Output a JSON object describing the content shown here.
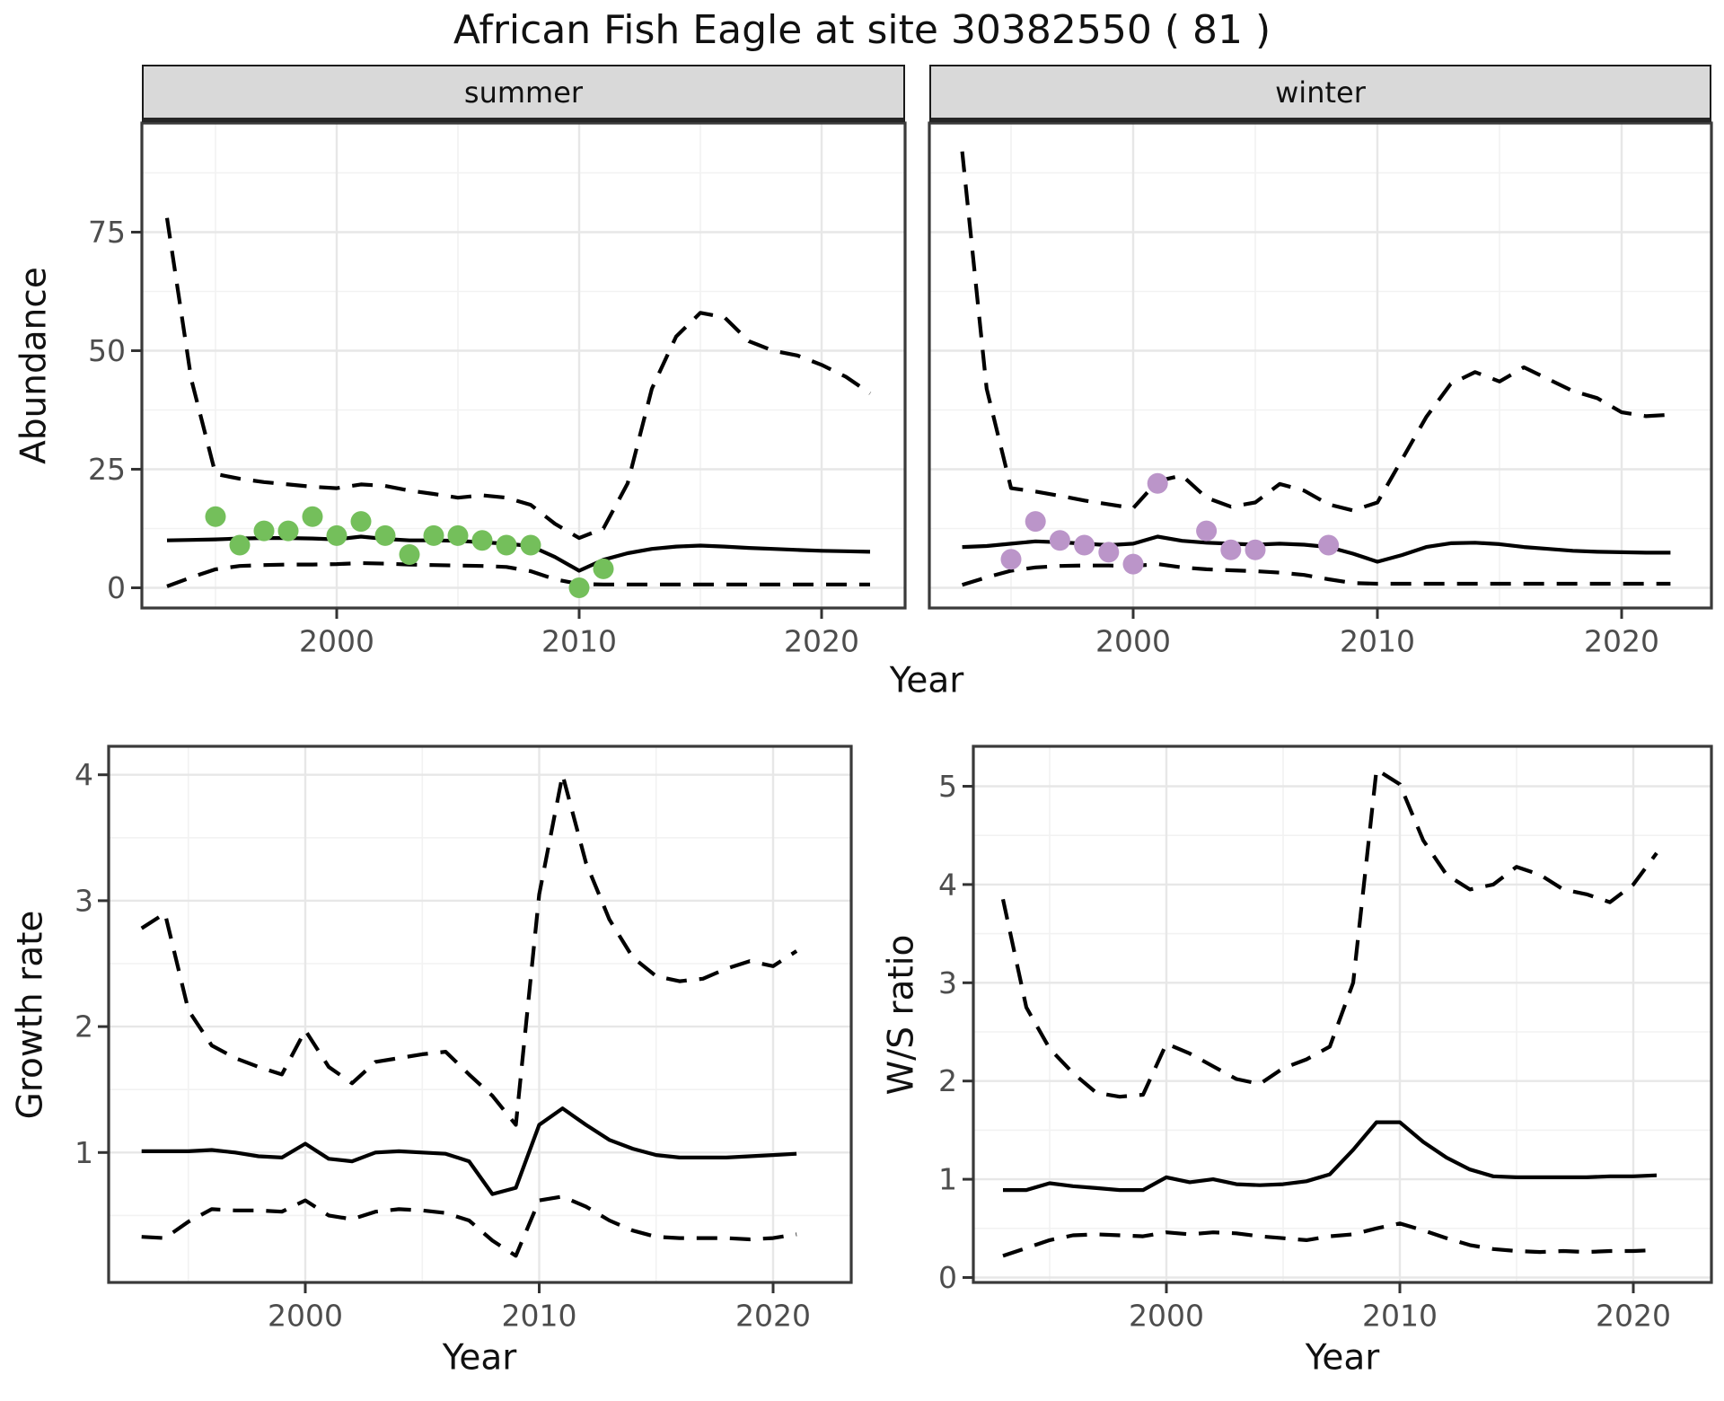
{
  "title": "African Fish Eagle at site 30382550 ( 81 )",
  "facets": [
    "summer",
    "winter"
  ],
  "colors": {
    "summer_points": "#74BF5B",
    "winter_points": "#BB95C9",
    "line": "#000000",
    "strip_bg": "#d9d9d9",
    "panel_border": "#3a3a3a",
    "grid_major": "#e7e7e7",
    "grid_minor": "#f2f2f2",
    "tick_text": "#4d4d4d"
  },
  "chart_data": [
    {
      "id": "abundance-summer",
      "type": "line",
      "facet": "summer",
      "title": "",
      "xlabel": "Year",
      "ylabel": "Abundance",
      "xlim": [
        1992.3,
        2023.3
      ],
      "ylim": [
        -4,
        98
      ],
      "x_ticks": [
        2000,
        2010,
        2020
      ],
      "x_minor": [
        1995,
        2005,
        2015
      ],
      "y_ticks": [
        0,
        25,
        50,
        75
      ],
      "y_minor": [
        12.5,
        37.5,
        62.5,
        87.5
      ],
      "grid": true,
      "legend": "none",
      "years": [
        1993,
        1994,
        1995,
        1996,
        1997,
        1998,
        1999,
        2000,
        2001,
        2002,
        2003,
        2004,
        2005,
        2006,
        2007,
        2008,
        2009,
        2010,
        2011,
        2012,
        2013,
        2014,
        2015,
        2016,
        2017,
        2018,
        2019,
        2020,
        2021,
        2022
      ],
      "series": [
        {
          "name": "fit",
          "style": "solid",
          "values": [
            10,
            10.1,
            10.2,
            10.4,
            10.5,
            10.5,
            10.4,
            10.2,
            10.8,
            10.3,
            10,
            10,
            9.9,
            9.6,
            9.3,
            8.8,
            6.5,
            3.6,
            5.9,
            7.3,
            8.2,
            8.7,
            8.9,
            8.7,
            8.4,
            8.2,
            8,
            7.8,
            7.7,
            7.6
          ]
        },
        {
          "name": "upper_ci",
          "style": "dashed",
          "values": [
            78,
            44,
            24,
            23,
            22.3,
            21.8,
            21.3,
            21,
            21.8,
            21.5,
            20.5,
            19.8,
            19,
            19.5,
            19,
            17.5,
            13.5,
            10.5,
            12.5,
            22,
            42,
            53,
            58,
            57,
            52,
            50,
            49,
            47,
            44.5,
            41
          ]
        },
        {
          "name": "lower_ci",
          "style": "dashed",
          "values": [
            0.3,
            2.2,
            3.9,
            4.6,
            4.8,
            4.9,
            4.9,
            5,
            5.2,
            5.1,
            4.9,
            4.8,
            4.7,
            4.6,
            4.4,
            3.5,
            1.8,
            0.8,
            0.7,
            0.7,
            0.7,
            0.7,
            0.7,
            0.7,
            0.7,
            0.7,
            0.7,
            0.7,
            0.7,
            0.7
          ]
        }
      ],
      "points": {
        "name": "observations",
        "color": "#74BF5B",
        "xy": [
          [
            1995,
            15
          ],
          [
            1996,
            9
          ],
          [
            1997,
            12
          ],
          [
            1998,
            12
          ],
          [
            1999,
            15
          ],
          [
            2000,
            11
          ],
          [
            2001,
            14
          ],
          [
            2002,
            11
          ],
          [
            2003,
            7
          ],
          [
            2004,
            11
          ],
          [
            2005,
            11
          ],
          [
            2006,
            10
          ],
          [
            2007,
            9
          ],
          [
            2008,
            9
          ],
          [
            2010,
            0
          ],
          [
            2011,
            4
          ]
        ]
      }
    },
    {
      "id": "abundance-winter",
      "type": "line",
      "facet": "winter",
      "title": "",
      "xlabel": "Year",
      "ylabel": "Abundance",
      "xlim": [
        1992.3,
        2023.3
      ],
      "ylim": [
        -4,
        98
      ],
      "x_ticks": [
        2000,
        2010,
        2020
      ],
      "x_minor": [
        1995,
        2005,
        2015
      ],
      "y_ticks": [
        0,
        25,
        50,
        75
      ],
      "y_minor": [
        12.5,
        37.5,
        62.5,
        87.5
      ],
      "grid": true,
      "legend": "none",
      "years": [
        1993,
        1994,
        1995,
        1996,
        1997,
        1998,
        1999,
        2000,
        2001,
        2002,
        2003,
        2004,
        2005,
        2006,
        2007,
        2008,
        2009,
        2010,
        2011,
        2012,
        2013,
        2014,
        2015,
        2016,
        2017,
        2018,
        2019,
        2020,
        2021,
        2022
      ],
      "series": [
        {
          "name": "fit",
          "style": "solid",
          "values": [
            8.6,
            8.8,
            9.3,
            9.8,
            9.6,
            9.3,
            9,
            9.3,
            10.8,
            9.9,
            9.5,
            9.3,
            9.1,
            9.3,
            9.1,
            8.6,
            7.2,
            5.5,
            6.9,
            8.6,
            9.4,
            9.5,
            9.2,
            8.6,
            8.2,
            7.8,
            7.6,
            7.5,
            7.4,
            7.4
          ]
        },
        {
          "name": "upper_ci",
          "style": "dashed",
          "values": [
            92,
            42,
            21,
            20.3,
            19.4,
            18.4,
            17.6,
            16.8,
            22.5,
            23.7,
            19,
            17.1,
            18,
            21.9,
            20.5,
            17.6,
            16.3,
            18,
            27,
            36,
            43,
            45.5,
            43.5,
            46.5,
            44,
            41.5,
            40,
            37,
            36.2,
            36.5
          ]
        },
        {
          "name": "lower_ci",
          "style": "dashed",
          "values": [
            0.6,
            2.2,
            3.6,
            4.3,
            4.6,
            4.7,
            4.7,
            4.6,
            5,
            4.3,
            3.9,
            3.7,
            3.5,
            3.2,
            2.7,
            1.8,
            1,
            0.85,
            0.85,
            0.85,
            0.85,
            0.85,
            0.85,
            0.85,
            0.85,
            0.85,
            0.85,
            0.85,
            0.85,
            0.85
          ]
        }
      ],
      "points": {
        "name": "observations",
        "color": "#BB95C9",
        "xy": [
          [
            1995,
            6
          ],
          [
            1996,
            14
          ],
          [
            1997,
            10
          ],
          [
            1998,
            9
          ],
          [
            1999,
            7.5
          ],
          [
            2000,
            5
          ],
          [
            2001,
            22
          ],
          [
            2003,
            12
          ],
          [
            2004,
            8
          ],
          [
            2005,
            8
          ],
          [
            2008,
            9
          ]
        ]
      }
    },
    {
      "id": "growth-rate",
      "type": "line",
      "facet": "",
      "title": "",
      "xlabel": "Year",
      "ylabel": "Growth rate",
      "xlim": [
        1992.4,
        2023.3
      ],
      "ylim": [
        0.02,
        4.25
      ],
      "x_ticks": [
        2000,
        2010,
        2020
      ],
      "x_minor": [
        1995,
        2005,
        2015
      ],
      "y_ticks": [
        1,
        2,
        3,
        4
      ],
      "y_minor": [
        0.5,
        1.5,
        2.5,
        3.5
      ],
      "grid": true,
      "legend": "none",
      "years": [
        1993,
        1994,
        1995,
        1996,
        1997,
        1998,
        1999,
        2000,
        2001,
        2002,
        2003,
        2004,
        2005,
        2006,
        2007,
        2008,
        2009,
        2010,
        2011,
        2012,
        2013,
        2014,
        2015,
        2016,
        2017,
        2018,
        2019,
        2020,
        2021
      ],
      "series": [
        {
          "name": "fit",
          "style": "solid",
          "values": [
            1.01,
            1.01,
            1.01,
            1.02,
            1,
            0.97,
            0.96,
            1.07,
            0.95,
            0.93,
            1,
            1.01,
            1,
            0.99,
            0.93,
            0.67,
            0.72,
            1.22,
            1.35,
            1.22,
            1.1,
            1.03,
            0.98,
            0.96,
            0.96,
            0.96,
            0.97,
            0.98,
            0.99
          ]
        },
        {
          "name": "upper_ci",
          "style": "dashed",
          "values": [
            2.78,
            2.9,
            2.13,
            1.85,
            1.75,
            1.68,
            1.62,
            1.97,
            1.68,
            1.55,
            1.72,
            1.75,
            1.78,
            1.8,
            1.62,
            1.45,
            1.22,
            3.05,
            4,
            3.3,
            2.85,
            2.55,
            2.4,
            2.36,
            2.38,
            2.46,
            2.52,
            2.48,
            2.6
          ]
        },
        {
          "name": "lower_ci",
          "style": "dashed",
          "values": [
            0.33,
            0.32,
            0.45,
            0.55,
            0.54,
            0.54,
            0.53,
            0.62,
            0.5,
            0.47,
            0.53,
            0.55,
            0.54,
            0.52,
            0.46,
            0.3,
            0.18,
            0.62,
            0.65,
            0.57,
            0.46,
            0.38,
            0.33,
            0.32,
            0.32,
            0.32,
            0.31,
            0.32,
            0.35
          ]
        }
      ],
      "points": null
    },
    {
      "id": "ws-ratio",
      "type": "line",
      "facet": "",
      "title": "",
      "xlabel": "Year",
      "ylabel": "W/S ratio",
      "xlim": [
        1992.4,
        2023.3
      ],
      "ylim": [
        -0.05,
        5.45
      ],
      "x_ticks": [
        2000,
        2010,
        2020
      ],
      "x_minor": [
        1995,
        2005,
        2015
      ],
      "y_ticks": [
        0,
        1,
        2,
        3,
        4,
        5
      ],
      "y_minor": [
        0.5,
        1.5,
        2.5,
        3.5,
        4.5
      ],
      "grid": true,
      "legend": "none",
      "years": [
        1993,
        1994,
        1995,
        1996,
        1997,
        1998,
        1999,
        2000,
        2001,
        2002,
        2003,
        2004,
        2005,
        2006,
        2007,
        2008,
        2009,
        2010,
        2011,
        2012,
        2013,
        2014,
        2015,
        2016,
        2017,
        2018,
        2019,
        2020,
        2021
      ],
      "series": [
        {
          "name": "fit",
          "style": "solid",
          "values": [
            0.89,
            0.89,
            0.96,
            0.93,
            0.91,
            0.89,
            0.89,
            1.02,
            0.97,
            1,
            0.95,
            0.94,
            0.95,
            0.98,
            1.05,
            1.3,
            1.58,
            1.58,
            1.38,
            1.22,
            1.1,
            1.03,
            1.02,
            1.02,
            1.02,
            1.02,
            1.03,
            1.03,
            1.04
          ]
        },
        {
          "name": "upper_ci",
          "style": "dashed",
          "values": [
            3.85,
            2.75,
            2.33,
            2.08,
            1.88,
            1.84,
            1.86,
            2.38,
            2.28,
            2.15,
            2.02,
            1.97,
            2.13,
            2.22,
            2.35,
            3,
            5.17,
            5.02,
            4.45,
            4.1,
            3.95,
            4,
            4.18,
            4.1,
            3.95,
            3.9,
            3.82,
            4,
            4.32
          ]
        },
        {
          "name": "lower_ci",
          "style": "dashed",
          "values": [
            0.22,
            0.3,
            0.38,
            0.43,
            0.44,
            0.43,
            0.42,
            0.46,
            0.44,
            0.46,
            0.45,
            0.42,
            0.4,
            0.38,
            0.42,
            0.44,
            0.5,
            0.55,
            0.48,
            0.4,
            0.33,
            0.29,
            0.27,
            0.26,
            0.27,
            0.26,
            0.27,
            0.27,
            0.28
          ]
        }
      ],
      "points": null
    }
  ]
}
